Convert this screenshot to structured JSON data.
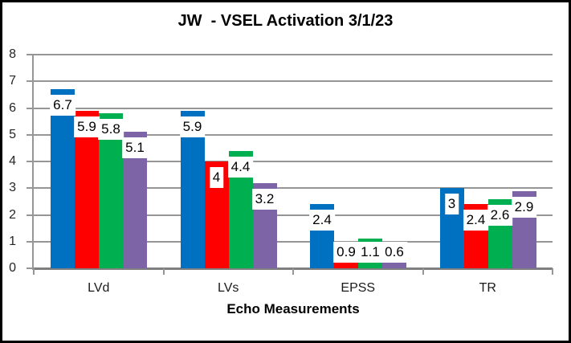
{
  "chart_data": {
    "type": "bar",
    "title": "JW  - VSEL Activation 3/1/23",
    "xlabel": "Echo Measurements",
    "ylabel": "",
    "categories": [
      "LVd",
      "LVs",
      "EPSS",
      "TR"
    ],
    "series": [
      {
        "name": "blue",
        "color": "#0070C0",
        "values": [
          6.7,
          5.9,
          2.4,
          3
        ]
      },
      {
        "name": "red",
        "color": "#FF0000",
        "values": [
          5.9,
          4,
          0.9,
          2.4
        ]
      },
      {
        "name": "green",
        "color": "#00B050",
        "values": [
          5.8,
          4.4,
          1.1,
          2.6
        ]
      },
      {
        "name": "purple",
        "color": "#7D64A6",
        "values": [
          5.1,
          3.2,
          0.6,
          2.9
        ]
      }
    ],
    "ylim": [
      0,
      8
    ],
    "ytick_step": 1,
    "yticks": [
      "0",
      "1",
      "2",
      "3",
      "4",
      "5",
      "6",
      "7",
      "8"
    ],
    "grid": true,
    "legend": "none",
    "data_labels": true,
    "data_label_background": "#ffffff",
    "gridline_color": "#969696",
    "bar_colors": [
      "#0070C0",
      "#FF0000",
      "#00B050",
      "#7D64A6"
    ],
    "frame_border_color": "#000000"
  }
}
